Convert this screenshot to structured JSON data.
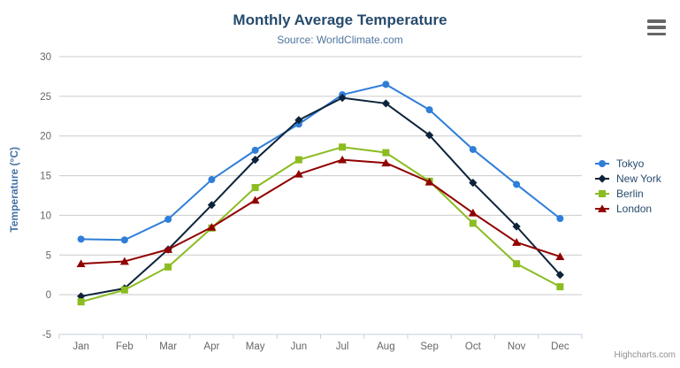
{
  "header": {
    "title": "Monthly Average Temperature",
    "subtitle": "Source: WorldClimate.com"
  },
  "icons": {
    "export_menu": "hamburger-icon"
  },
  "credits": {
    "label": "Highcharts.com"
  },
  "colors": {
    "title_text": "#274b6d",
    "subtitle_text": "#4d759e",
    "axis_label_text": "#666666",
    "y_axis_title_text": "#4572a7",
    "gridline": "#cccccc",
    "x_axis_line": "#c0d0e0",
    "legend_text": "#274b6d",
    "export_icon": "#666666",
    "background": "#ffffff"
  },
  "chart_data": {
    "type": "line",
    "title": "Monthly Average Temperature",
    "subtitle": "Source: WorldClimate.com",
    "categories": [
      "Jan",
      "Feb",
      "Mar",
      "Apr",
      "May",
      "Jun",
      "Jul",
      "Aug",
      "Sep",
      "Oct",
      "Nov",
      "Dec"
    ],
    "xlabel": "",
    "ylabel": "Temperature (°C)",
    "ylim": [
      -5,
      30
    ],
    "yticks": [
      -5,
      0,
      5,
      10,
      15,
      20,
      25,
      30
    ],
    "grid": "horizontal",
    "legend_position": "right",
    "series": [
      {
        "name": "Tokyo",
        "color": "#2f7ed8",
        "marker": "circle",
        "values": [
          7.0,
          6.9,
          9.5,
          14.5,
          18.2,
          21.5,
          25.2,
          26.5,
          23.3,
          18.3,
          13.9,
          9.6
        ]
      },
      {
        "name": "New York",
        "color": "#0d233a",
        "marker": "diamond",
        "values": [
          -0.2,
          0.8,
          5.7,
          11.3,
          17.0,
          22.0,
          24.8,
          24.1,
          20.1,
          14.1,
          8.6,
          2.5
        ]
      },
      {
        "name": "Berlin",
        "color": "#8bbc21",
        "marker": "square",
        "values": [
          -0.9,
          0.6,
          3.5,
          8.4,
          13.5,
          17.0,
          18.6,
          17.9,
          14.3,
          9.0,
          3.9,
          1.0
        ]
      },
      {
        "name": "London",
        "color": "#910000",
        "marker": "triangle",
        "values": [
          3.9,
          4.2,
          5.7,
          8.5,
          11.9,
          15.2,
          17.0,
          16.6,
          14.2,
          10.3,
          6.6,
          4.8
        ]
      }
    ]
  }
}
